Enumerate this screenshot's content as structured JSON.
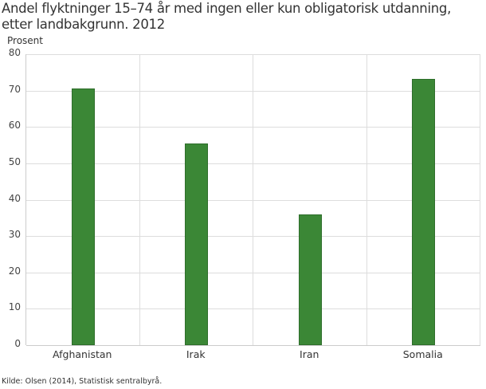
{
  "title_line1": "Andel flyktninger 15–74 år med ingen eller kun obligatorisk utdanning,",
  "title_line2": "etter landbakgrunn. 2012",
  "source": "Kilde: Olsen (2014), Statistisk sentralbyrå.",
  "colors": {
    "bar": "#3b8736",
    "grid": "#dddddd"
  },
  "chart_data": {
    "type": "bar",
    "title": "Andel flyktninger 15–74 år med ingen eller kun obligatorisk utdanning, etter landbakgrunn. 2012",
    "xlabel": "",
    "ylabel": "Prosent",
    "categories": [
      "Afghanistan",
      "Irak",
      "Iran",
      "Somalia"
    ],
    "values": [
      70.6,
      55.4,
      36.0,
      73.2
    ],
    "ylim": [
      0,
      80
    ],
    "yticks": [
      0,
      10,
      20,
      30,
      40,
      50,
      60,
      70,
      80
    ],
    "grid": true,
    "legend": null
  }
}
